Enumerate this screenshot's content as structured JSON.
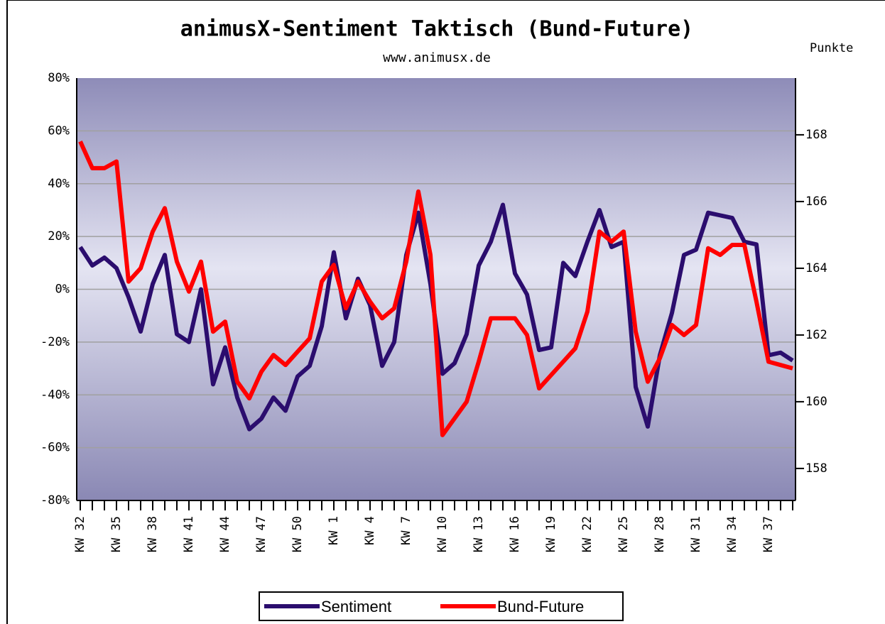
{
  "chart_data": {
    "type": "line",
    "title": "animusX-Sentiment Taktisch (Bund-Future)",
    "subtitle": "www.animusx.de",
    "y2label": "Punkte",
    "categories": [
      "KW 32",
      null,
      null,
      "KW 35",
      null,
      null,
      "KW 38",
      null,
      null,
      "KW 41",
      null,
      null,
      "KW 44",
      null,
      null,
      "KW 47",
      null,
      null,
      "KW 50",
      null,
      null,
      "KW 1",
      null,
      null,
      "KW 4",
      null,
      null,
      "KW 7",
      null,
      null,
      "KW 10",
      null,
      null,
      "KW 13",
      null,
      null,
      "KW 16",
      null,
      null,
      "KW 19",
      null,
      null,
      "KW 22",
      null,
      null,
      "KW 25",
      null,
      null,
      "KW 28",
      null,
      null,
      "KW 31",
      null,
      null,
      "KW 34",
      null,
      null,
      "KW 37",
      null,
      null
    ],
    "series": [
      {
        "name": "Sentiment",
        "color": "#2b0d6e",
        "axis": "y",
        "values": [
          16,
          9,
          12,
          8,
          -3,
          -16,
          2,
          13,
          -17,
          -20,
          0,
          -36,
          -22,
          -41,
          -53,
          -49,
          -41,
          -46,
          -33,
          -29,
          -14,
          14,
          -11,
          4,
          -6,
          -29,
          -20,
          13,
          29,
          2,
          -32,
          -28,
          -17,
          9,
          18,
          32,
          6,
          -2,
          -23,
          -22,
          10,
          5,
          18,
          30,
          16,
          18,
          -37,
          -52,
          -25,
          -9,
          13,
          15,
          29,
          28,
          27,
          18,
          17,
          -25,
          -24,
          -27
        ]
      },
      {
        "name": "Bund-Future",
        "color": "#ff0000",
        "axis": "y2",
        "values": [
          167.8,
          167.0,
          167.0,
          167.2,
          163.6,
          164.0,
          165.1,
          165.8,
          164.2,
          163.3,
          164.2,
          162.1,
          162.4,
          160.6,
          160.1,
          160.9,
          161.4,
          161.1,
          161.5,
          161.9,
          163.6,
          164.1,
          162.8,
          163.6,
          163.0,
          162.5,
          162.8,
          164.2,
          166.3,
          164.4,
          159.0,
          159.5,
          160.0,
          161.2,
          162.5,
          162.5,
          162.5,
          162.0,
          160.4,
          160.8,
          161.2,
          161.6,
          162.7,
          165.1,
          164.8,
          165.1,
          162.1,
          160.6,
          161.3,
          162.3,
          162.0,
          162.3,
          164.6,
          164.4,
          164.7,
          164.7,
          163.0,
          161.2,
          161.1,
          161.0
        ]
      }
    ],
    "ylim": [
      -80,
      80
    ],
    "yticks": [
      {
        "value": -80,
        "label": "-80%"
      },
      {
        "value": -60,
        "label": "-60%"
      },
      {
        "value": -40,
        "label": "-40%"
      },
      {
        "value": -20,
        "label": "-20%"
      },
      {
        "value": 0,
        "label": "0%"
      },
      {
        "value": 20,
        "label": "20%"
      },
      {
        "value": 40,
        "label": "40%"
      },
      {
        "value": 60,
        "label": "60%"
      },
      {
        "value": 80,
        "label": "80%"
      }
    ],
    "y2lim": [
      157.04,
      169.7
    ],
    "y2ticks": [
      158,
      160,
      162,
      164,
      166,
      168
    ],
    "grid": true
  }
}
